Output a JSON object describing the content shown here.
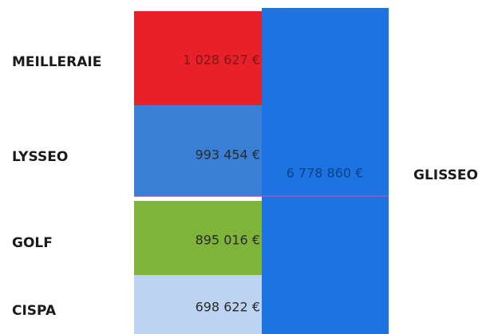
{
  "segments": [
    {
      "label": "MEILLERAIE",
      "value": "1 028 627 €"
    },
    {
      "label": "LYSSEO",
      "value": "993 454 €"
    },
    {
      "label": "GOLF",
      "value": "895 016 €"
    },
    {
      "label": "CISPA",
      "value": "698 622 €"
    }
  ],
  "total": {
    "label": "GLISSEO",
    "value": "6 778 860 €"
  }
}
